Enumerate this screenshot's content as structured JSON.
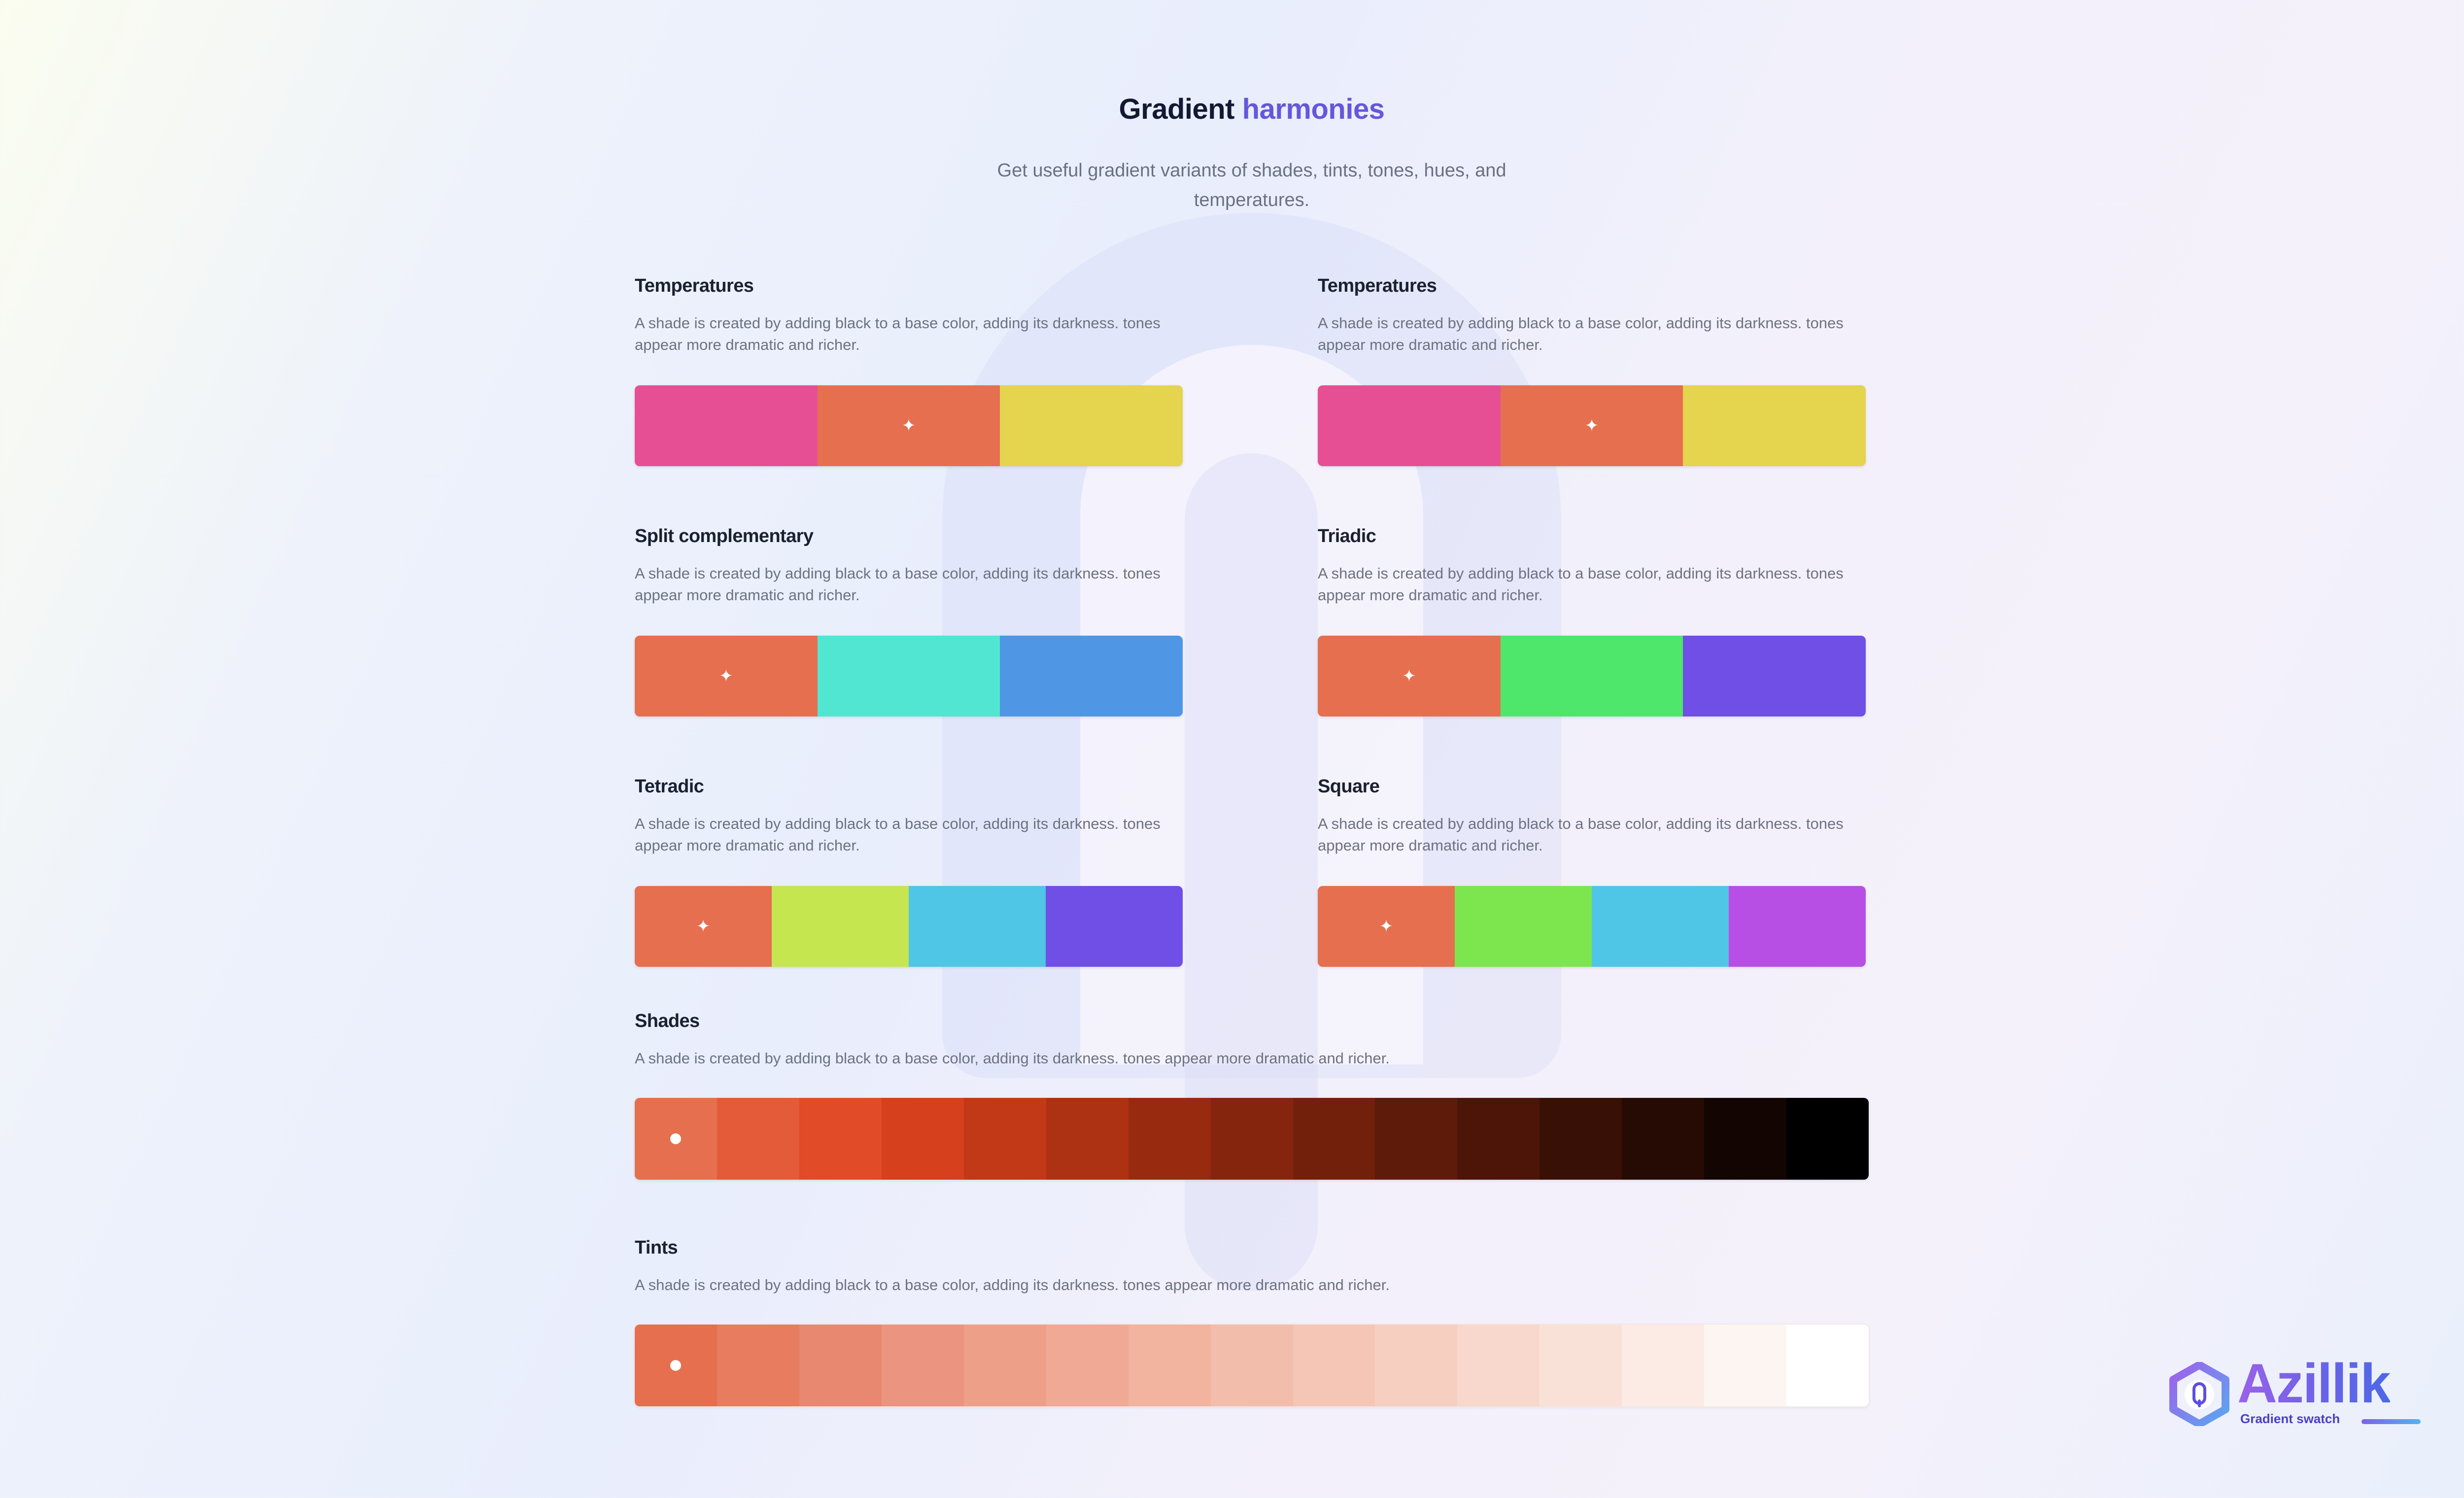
{
  "header": {
    "title_main": "Gradient",
    "title_accent": "harmonies",
    "subtitle": "Get useful gradient variants of shades, tints, tones, hues, and temperatures.",
    "accent_color": "#6557dc"
  },
  "sections": {
    "temperatures_a": {
      "title": "Temperatures",
      "description": "A shade is created by adding black to a base color, adding its darkness. tones appear more dramatic and richer.",
      "colors": [
        "#e64f94",
        "#e56f4f",
        "#e4d44e"
      ],
      "selected_index": 1
    },
    "temperatures_b": {
      "title": "Temperatures",
      "description": "A shade is created by adding black to a base color, adding its darkness. tones appear more dramatic and richer.",
      "colors": [
        "#e64f94",
        "#e56f4f",
        "#e4d44e"
      ],
      "selected_index": 1
    },
    "split_complementary": {
      "title": "Split complementary",
      "description": "A shade is created by adding black to a base color, adding its darkness. tones appear more dramatic and richer.",
      "colors": [
        "#e56f4f",
        "#51e6d2",
        "#4f96e5"
      ],
      "selected_index": 0
    },
    "triadic": {
      "title": "Triadic",
      "description": "A shade is created by adding black to a base color, adding its darkness. tones appear more dramatic and richer.",
      "colors": [
        "#e56f4f",
        "#4fe66c",
        "#6f4fe5"
      ],
      "selected_index": 0
    },
    "tetradic": {
      "title": "Tetradic",
      "description": "A shade is created by adding black to a base color, adding its darkness. tones appear more dramatic and richer.",
      "colors": [
        "#e56f4f",
        "#c6e64f",
        "#4fc6e5",
        "#6f4fe5"
      ],
      "selected_index": 0
    },
    "square": {
      "title": "Square",
      "description": "A shade is created by adding black to a base color, adding its darkness. tones appear more dramatic and richer.",
      "colors": [
        "#e56f4f",
        "#7de64f",
        "#4fc6e5",
        "#b74fe5"
      ],
      "selected_index": 0
    },
    "shades": {
      "title": "Shades",
      "description": "A shade is created by adding black to a base color, adding its darkness. tones appear more dramatic and richer.",
      "colors": [
        "#e56f4f",
        "#e35b38",
        "#e14b28",
        "#d6401c",
        "#c13917",
        "#ad3113",
        "#982a10",
        "#85250e",
        "#72200c",
        "#5f1b0a",
        "#4c1508",
        "#391006",
        "#260b04",
        "#130502",
        "#000000"
      ],
      "selected_index": 0
    },
    "tints": {
      "title": "Tints",
      "description": "A shade is created by adding black to a base color, adding its darkness. tones appear more dramatic and richer.",
      "colors": [
        "#e56f4f",
        "#e77c5f",
        "#e98870",
        "#eb9580",
        "#ee9f88",
        "#f0a994",
        "#f2b39f",
        "#f3bdab",
        "#f5c6b6",
        "#f6cfc1",
        "#f8d8cd",
        "#fae1d8",
        "#fbebe4",
        "#fdf5f1",
        "#ffffff"
      ],
      "selected_index": 0
    }
  },
  "brand": {
    "name": "Azillik",
    "tagline": "Gradient swatch"
  }
}
